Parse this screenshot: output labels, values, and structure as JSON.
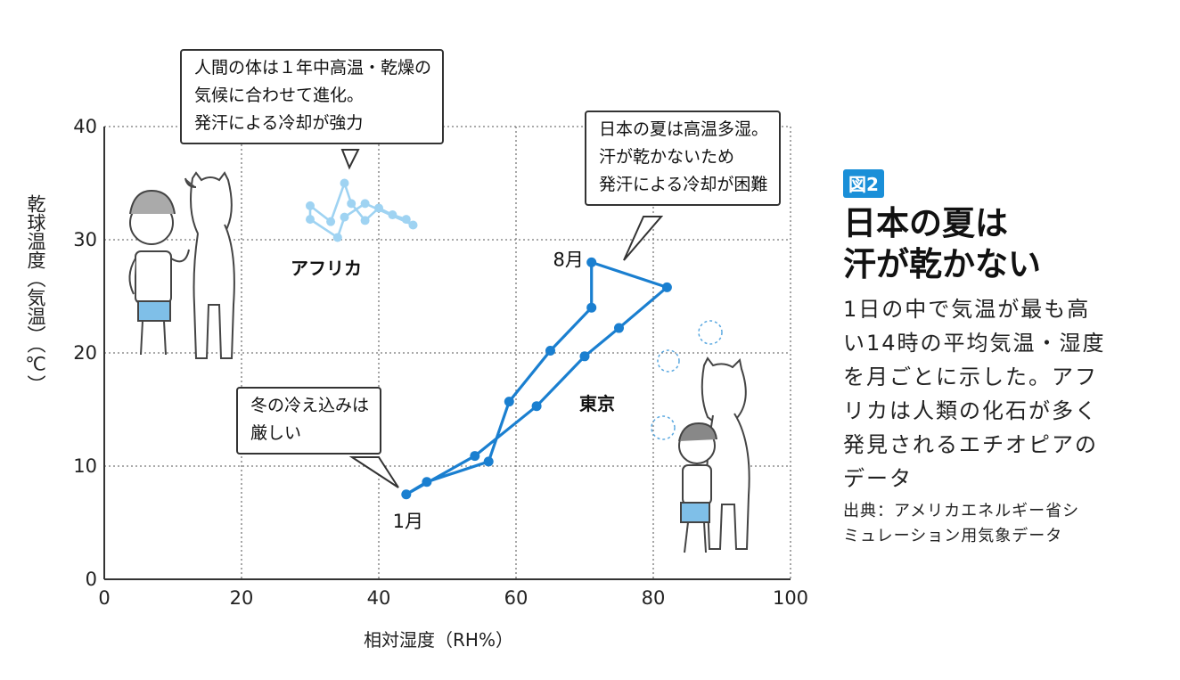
{
  "figure_badge": "図2",
  "headline": [
    "日本の夏は",
    "汗が乾かない"
  ],
  "description": [
    "1日の中で気温が最も高",
    "い14時の平均気温・湿度",
    "を月ごとに示した。アフ",
    "リカは人類の化石が多く",
    "発見されるエチオピアの",
    "データ"
  ],
  "source": [
    "出典：アメリカエネルギー省シ",
    "ミュレーション用気象データ"
  ],
  "callouts": {
    "africa": [
      "人間の体は１年中高温・乾燥の",
      "気候に合わせて進化。",
      "発汗による冷却が強力"
    ],
    "japan": [
      "日本の夏は高温多湿。",
      "汗が乾かないため",
      "発汗による冷却が困難"
    ],
    "winter": [
      "冬の冷え込みは",
      "厳しい"
    ]
  },
  "colors": {
    "tokyo": "#1a7fd0",
    "africa": "#9fd3f2",
    "badge": "#1a8fd8",
    "grid": "#777777"
  },
  "chart_data": {
    "type": "line",
    "xlabel": "相対湿度（RH%）",
    "ylabel": "乾球温度（気温）（℃）",
    "xlim": [
      0,
      100
    ],
    "ylim": [
      0,
      40
    ],
    "xticks": [
      0,
      20,
      40,
      60,
      80,
      100
    ],
    "yticks": [
      0,
      10,
      20,
      30,
      40
    ],
    "grid": true,
    "series": [
      {
        "name": "東京",
        "color": "#1a7fd0",
        "points": [
          [
            44,
            7.5
          ],
          [
            47,
            8.6
          ],
          [
            56,
            10.4
          ],
          [
            59,
            15.7
          ],
          [
            65,
            20.2
          ],
          [
            71,
            24
          ],
          [
            71,
            28
          ],
          [
            82,
            25.8
          ],
          [
            75,
            22.2
          ],
          [
            70,
            19.7
          ],
          [
            63,
            15.3
          ],
          [
            54,
            10.9
          ],
          [
            44,
            7.5
          ]
        ]
      },
      {
        "name": "アフリカ",
        "color": "#9fd3f2",
        "points": [
          [
            30,
            33
          ],
          [
            33,
            31.6
          ],
          [
            35,
            35
          ],
          [
            36,
            33.2
          ],
          [
            38,
            31.7
          ],
          [
            40,
            32.8
          ],
          [
            42,
            32.2
          ],
          [
            44,
            31.8
          ],
          [
            45,
            31.3
          ],
          [
            38,
            33.2
          ],
          [
            35,
            32
          ],
          [
            34,
            30.2
          ],
          [
            30,
            31.8
          ],
          [
            30,
            33
          ]
        ]
      }
    ],
    "annotations": [
      "1月",
      "8月"
    ]
  }
}
